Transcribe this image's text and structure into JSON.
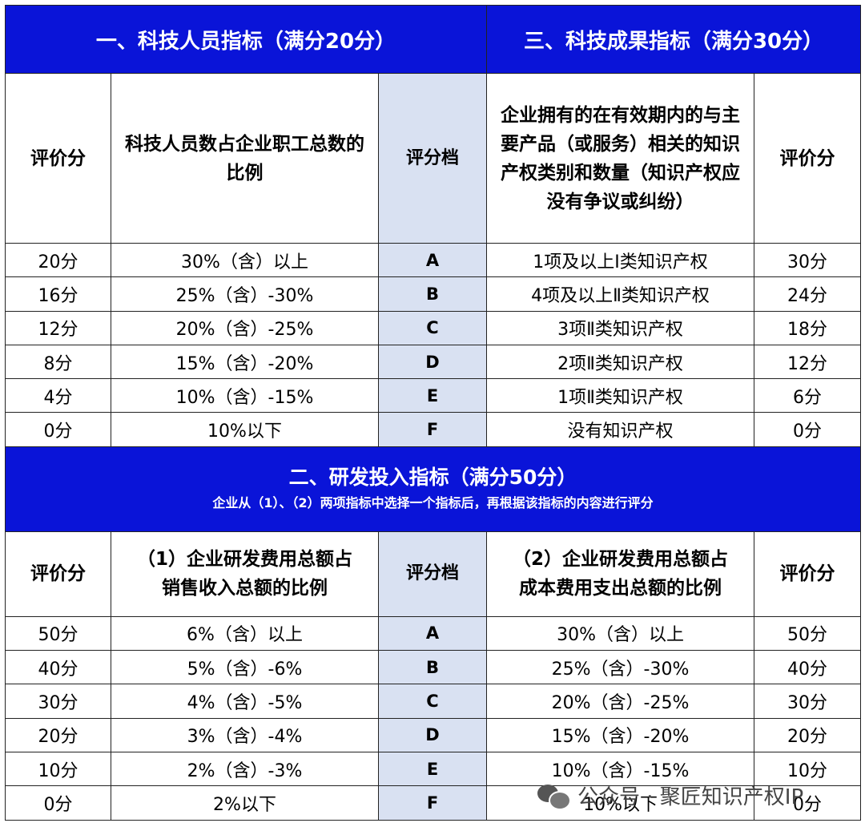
{
  "section1": {
    "title": "一、科技人员指标（满分20分）"
  },
  "section3": {
    "title": "三、科技成果指标（满分30分）"
  },
  "section2": {
    "title": "二、研发投入指标（满分50分）",
    "note": "企业从（1）、（2）两项指标中选择一个指标后，再根据该指标的内容进行评分"
  },
  "top_headers": {
    "score": "评价分",
    "staff_ratio": "科技人员数占企业职工总数的比例",
    "grade": "评分档",
    "ip": "企业拥有的在有效期内的与主要产品（或服务）相关的知识产权类别和数量（知识产权应没有争议或纠纷）",
    "score_right": "评价分"
  },
  "top_rows": [
    {
      "score": "20分",
      "ratio": "30%（含）以上",
      "grade": "A",
      "ip": "1项及以上Ⅰ类知识产权",
      "ip_score": "30分"
    },
    {
      "score": "16分",
      "ratio": "25%（含）-30%",
      "grade": "B",
      "ip": "4项及以上Ⅱ类知识产权",
      "ip_score": "24分"
    },
    {
      "score": "12分",
      "ratio": "20%（含）-25%",
      "grade": "C",
      "ip": "3项Ⅱ类知识产权",
      "ip_score": "18分"
    },
    {
      "score": "8分",
      "ratio": "15%（含）-20%",
      "grade": "D",
      "ip": "2项Ⅱ类知识产权",
      "ip_score": "12分"
    },
    {
      "score": "4分",
      "ratio": "10%（含）-15%",
      "grade": "E",
      "ip": "1项Ⅱ类知识产权",
      "ip_score": "6分"
    },
    {
      "score": "0分",
      "ratio": "10%以下",
      "grade": "F",
      "ip": "没有知识产权",
      "ip_score": "0分"
    }
  ],
  "bottom_headers": {
    "score": "评价分",
    "sales_ratio": "（1）企业研发费用总额占销售收入总额的比例",
    "grade": "评分档",
    "cost_ratio": "（2）企业研发费用总额占成本费用支出总额的比例",
    "score_right": "评价分"
  },
  "bottom_rows": [
    {
      "score": "50分",
      "sales": "6%（含）以上",
      "grade": "A",
      "cost": "30%（含）以上",
      "cost_score": "50分"
    },
    {
      "score": "40分",
      "sales": "5%（含）-6%",
      "grade": "B",
      "cost": "25%（含）-30%",
      "cost_score": "40分"
    },
    {
      "score": "30分",
      "sales": "4%（含）-5%",
      "grade": "C",
      "cost": "20%（含）-25%",
      "cost_score": "30分"
    },
    {
      "score": "20分",
      "sales": "3%（含）-4%",
      "grade": "D",
      "cost": "15%（含）-20%",
      "cost_score": "20分"
    },
    {
      "score": "10分",
      "sales": "2%（含）-3%",
      "grade": "E",
      "cost": "10%（含）-15%",
      "cost_score": "10分"
    },
    {
      "score": "0分",
      "sales": "2%以下",
      "grade": "F",
      "cost": "10%以下",
      "cost_score": "0分"
    }
  ],
  "watermark": {
    "text": "公众号 · 聚匠知识产权IP",
    "icon": "wechat-icon"
  },
  "colors": {
    "banner": "#0a14d8",
    "grade_column": "#d9e1f2"
  }
}
